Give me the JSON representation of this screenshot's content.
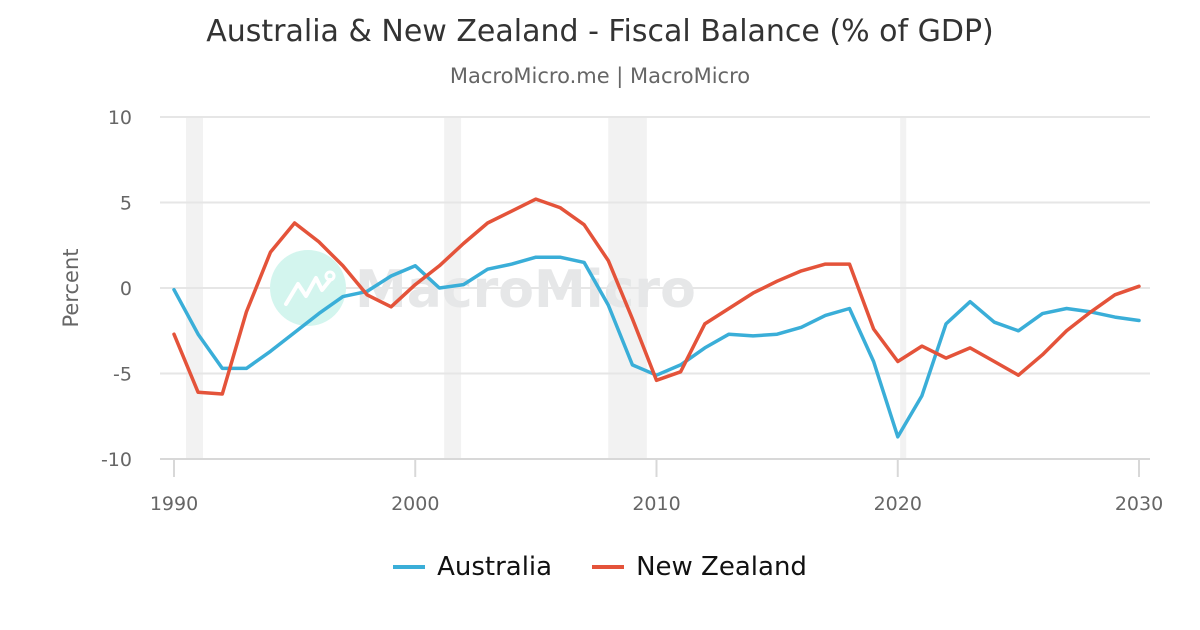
{
  "header": {
    "title": "Australia & New Zealand - Fiscal Balance (% of GDP)",
    "subtitle": "MacroMicro.me | MacroMicro"
  },
  "watermark": "MacroMicro",
  "legend": {
    "items": [
      {
        "label": "Australia",
        "color": "#3aaed8"
      },
      {
        "label": "New Zealand",
        "color": "#e4533a"
      }
    ]
  },
  "chart_data": {
    "type": "line",
    "title": "Australia & New Zealand - Fiscal Balance (% of GDP)",
    "subtitle": "MacroMicro.me | MacroMicro",
    "xlabel": "",
    "ylabel": "Percent",
    "ylim": [
      -10,
      10
    ],
    "xlim": [
      1990,
      2030
    ],
    "yticks": [
      10,
      5,
      0,
      -5,
      -10
    ],
    "xticks": [
      1990,
      2000,
      2010,
      2020,
      2030
    ],
    "grid": true,
    "legend_position": "bottom",
    "recession_bands": [
      [
        1990.5,
        1991.2
      ],
      [
        2001.2,
        2001.9
      ],
      [
        2008.0,
        2009.6
      ],
      [
        2020.1,
        2020.35
      ]
    ],
    "x": [
      1990,
      1991,
      1992,
      1993,
      1994,
      1995,
      1996,
      1997,
      1998,
      1999,
      2000,
      2001,
      2002,
      2003,
      2004,
      2005,
      2006,
      2007,
      2008,
      2009,
      2010,
      2011,
      2012,
      2013,
      2014,
      2015,
      2016,
      2017,
      2018,
      2019,
      2020,
      2021,
      2022,
      2023,
      2024,
      2025,
      2026,
      2027,
      2028,
      2029,
      2030
    ],
    "series": [
      {
        "name": "Australia",
        "color": "#3aaed8",
        "values": [
          -0.1,
          -2.7,
          -4.7,
          -4.7,
          -3.7,
          -2.6,
          -1.5,
          -0.5,
          -0.2,
          0.7,
          1.3,
          0.0,
          0.2,
          1.1,
          1.4,
          1.8,
          1.8,
          1.5,
          -1.0,
          -4.5,
          -5.1,
          -4.5,
          -3.5,
          -2.7,
          -2.8,
          -2.7,
          -2.3,
          -1.6,
          -1.2,
          -4.3,
          -8.7,
          -6.3,
          -2.1,
          -0.8,
          -2.0,
          -2.5,
          -1.5,
          -1.2,
          -1.4,
          -1.7,
          -1.9
        ]
      },
      {
        "name": "New Zealand",
        "color": "#e4533a",
        "values": [
          -2.7,
          -6.1,
          -6.2,
          -1.4,
          2.1,
          3.8,
          2.7,
          1.3,
          -0.4,
          -1.1,
          0.2,
          1.3,
          2.6,
          3.8,
          4.5,
          5.2,
          4.7,
          3.7,
          1.6,
          -1.8,
          -5.4,
          -4.9,
          -2.1,
          -1.2,
          -0.3,
          0.4,
          1.0,
          1.4,
          1.4,
          -2.4,
          -4.3,
          -3.4,
          -4.1,
          -3.5,
          -4.3,
          -5.1,
          -3.9,
          -2.5,
          -1.4,
          -0.4,
          0.1
        ]
      }
    ]
  }
}
